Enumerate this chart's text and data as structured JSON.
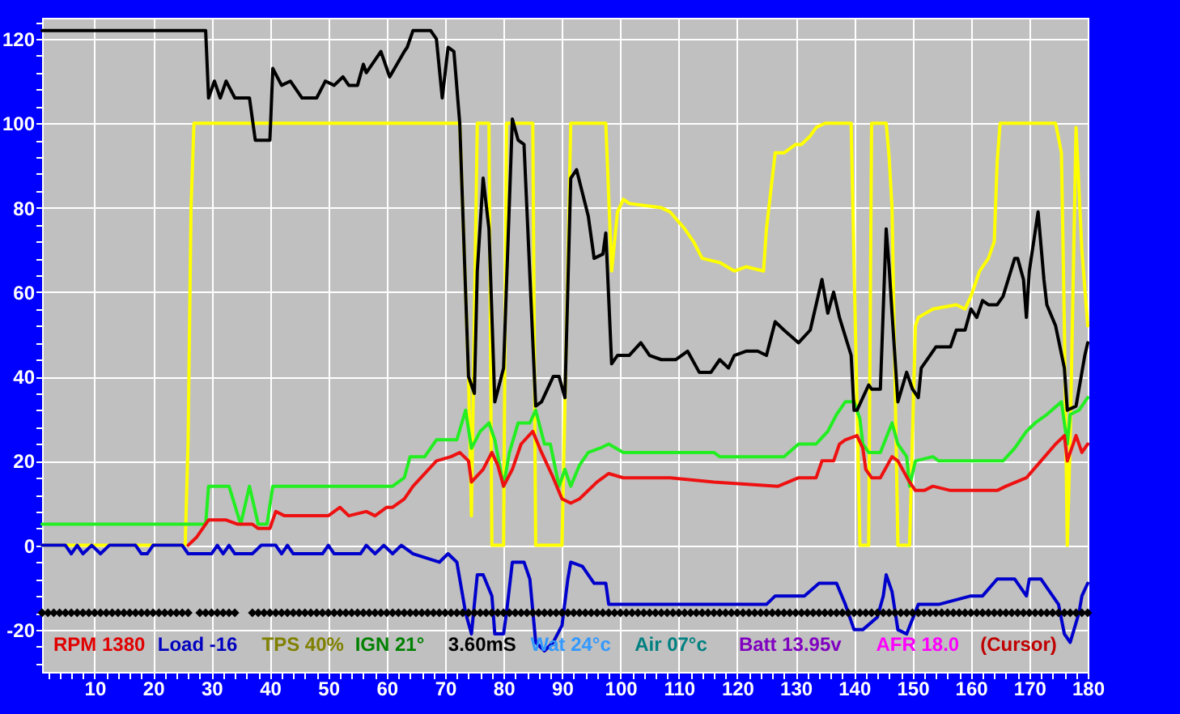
{
  "chart_data": {
    "type": "line",
    "xlim": [
      1,
      180
    ],
    "ylim": [
      -30,
      125
    ],
    "grid": true,
    "xticks": [
      {
        "value": 2,
        "label": null
      },
      {
        "value": 4,
        "label": null
      },
      {
        "value": 6,
        "label": null
      },
      {
        "value": 8,
        "label": null
      },
      10,
      {
        "value": 12,
        "label": null
      },
      {
        "value": 14,
        "label": null
      },
      {
        "value": 16,
        "label": null
      },
      {
        "value": 18,
        "label": null
      },
      20,
      {
        "value": 22,
        "label": null
      },
      {
        "value": 24,
        "label": null
      },
      {
        "value": 26,
        "label": null
      },
      {
        "value": 28,
        "label": null
      },
      30,
      {
        "value": 32,
        "label": null
      },
      {
        "value": 34,
        "label": null
      },
      {
        "value": 36,
        "label": null
      },
      {
        "value": 38,
        "label": null
      },
      40,
      {
        "value": 42,
        "label": null
      },
      {
        "value": 44,
        "label": null
      },
      {
        "value": 46,
        "label": null
      },
      {
        "value": 48,
        "label": null
      },
      50,
      {
        "value": 52,
        "label": null
      },
      {
        "value": 54,
        "label": null
      },
      {
        "value": 56,
        "label": null
      },
      {
        "value": 58,
        "label": null
      },
      60,
      {
        "value": 62,
        "label": null
      },
      {
        "value": 64,
        "label": null
      },
      {
        "value": 66,
        "label": null
      },
      {
        "value": 68,
        "label": null
      },
      70,
      {
        "value": 72,
        "label": null
      },
      {
        "value": 74,
        "label": null
      },
      {
        "value": 76,
        "label": null
      },
      {
        "value": 78,
        "label": null
      },
      80,
      {
        "value": 82,
        "label": null
      },
      {
        "value": 84,
        "label": null
      },
      {
        "value": 86,
        "label": null
      },
      {
        "value": 88,
        "label": null
      },
      90,
      {
        "value": 92,
        "label": null
      },
      {
        "value": 94,
        "label": null
      },
      {
        "value": 96,
        "label": null
      },
      {
        "value": 98,
        "label": null
      },
      100,
      {
        "value": 102,
        "label": null
      },
      {
        "value": 104,
        "label": null
      },
      {
        "value": 106,
        "label": null
      },
      {
        "value": 108,
        "label": null
      },
      110,
      {
        "value": 112,
        "label": null
      },
      {
        "value": 114,
        "label": null
      },
      {
        "value": 116,
        "label": null
      },
      {
        "value": 118,
        "label": null
      },
      120,
      {
        "value": 122,
        "label": null
      },
      {
        "value": 124,
        "label": null
      },
      {
        "value": 126,
        "label": null
      },
      {
        "value": 128,
        "label": null
      },
      130,
      {
        "value": 132,
        "label": null
      },
      {
        "value": 134,
        "label": null
      },
      {
        "value": 136,
        "label": null
      },
      {
        "value": 138,
        "label": null
      },
      140,
      {
        "value": 142,
        "label": null
      },
      {
        "value": 144,
        "label": null
      },
      {
        "value": 146,
        "label": null
      },
      {
        "value": 148,
        "label": null
      },
      150,
      {
        "value": 152,
        "label": null
      },
      {
        "value": 154,
        "label": null
      },
      {
        "value": 156,
        "label": null
      },
      {
        "value": 158,
        "label": null
      },
      160,
      {
        "value": 162,
        "label": null
      },
      {
        "value": 164,
        "label": null
      },
      {
        "value": 166,
        "label": null
      },
      {
        "value": 168,
        "label": null
      },
      170,
      {
        "value": 172,
        "label": null
      },
      {
        "value": 174,
        "label": null
      },
      {
        "value": 176,
        "label": null
      },
      {
        "value": 178,
        "label": null
      },
      180
    ],
    "yticks": [
      {
        "value": -28,
        "label": null
      },
      {
        "value": -24,
        "label": null
      },
      -20,
      {
        "value": -16,
        "label": null
      },
      {
        "value": -12,
        "label": null
      },
      {
        "value": -8,
        "label": null
      },
      {
        "value": -4,
        "label": null
      },
      0,
      {
        "value": 4,
        "label": null
      },
      {
        "value": 8,
        "label": null
      },
      {
        "value": 12,
        "label": null
      },
      {
        "value": 16,
        "label": null
      },
      20,
      {
        "value": 24,
        "label": null
      },
      {
        "value": 28,
        "label": null
      },
      {
        "value": 32,
        "label": null
      },
      {
        "value": 36,
        "label": null
      },
      40,
      {
        "value": 44,
        "label": null
      },
      {
        "value": 48,
        "label": null
      },
      {
        "value": 52,
        "label": null
      },
      {
        "value": 56,
        "label": null
      },
      60,
      {
        "value": 64,
        "label": null
      },
      {
        "value": 68,
        "label": null
      },
      {
        "value": 72,
        "label": null
      },
      {
        "value": 76,
        "label": null
      },
      80,
      {
        "value": 84,
        "label": null
      },
      {
        "value": 88,
        "label": null
      },
      {
        "value": 92,
        "label": null
      },
      {
        "value": 96,
        "label": null
      },
      100,
      {
        "value": 104,
        "label": null
      },
      {
        "value": 108,
        "label": null
      },
      {
        "value": 112,
        "label": null
      },
      {
        "value": 116,
        "label": null
      },
      120,
      {
        "value": 124,
        "label": null
      }
    ],
    "annotations": [
      "RPM 1380",
      "Load -16",
      "TPS 40%",
      "IGN 21°",
      "3.60mS",
      "Wat 24°c",
      "Air 07°c",
      "Batt 13.95v",
      "AFR 18.0",
      "(Cursor)"
    ],
    "series": [
      {
        "color": "#ffff00",
        "x": [
          1,
          25.5,
          26,
          26.5,
          27,
          72.5,
          74,
          74.5,
          75.5,
          77.5,
          78,
          80,
          80.5,
          85,
          85.5,
          90,
          91.5,
          97.5,
          98.5,
          99.5,
          100.5,
          101.5,
          107,
          108.5,
          111,
          112.5,
          114,
          117,
          119.5,
          121.5,
          124.5,
          125,
          126.5,
          128,
          130,
          131,
          132.5,
          133.5,
          135,
          139.5,
          141,
          142.5,
          143,
          145.5,
          146,
          146.5,
          147.5,
          149.5,
          150.5,
          151,
          153.5,
          157.5,
          159,
          160,
          161.5,
          163,
          164,
          164.5,
          165,
          174.5,
          175.5,
          176,
          176.5,
          177,
          178,
          179,
          180
        ],
        "values": [
          0,
          0,
          25,
          80,
          100,
          100,
          40,
          7,
          100,
          100,
          0,
          0,
          100,
          100,
          0,
          0,
          100,
          100,
          65,
          79,
          82,
          81,
          80,
          79,
          75,
          72,
          68,
          67,
          65,
          66,
          65,
          75,
          93,
          93,
          95,
          95,
          97,
          99,
          100,
          100,
          0,
          0,
          100,
          100,
          92,
          80,
          0,
          0,
          52,
          54,
          56,
          57,
          56,
          59,
          65,
          68,
          72,
          91,
          100,
          100,
          93,
          52,
          0,
          25,
          99,
          70,
          52
        ]
      },
      {
        "color": "#22ee22",
        "x": [
          1,
          29,
          29.5,
          33,
          35,
          36.5,
          38,
          39.5,
          40.5,
          61,
          63,
          64,
          66.5,
          68.5,
          72,
          73.5,
          74.5,
          76,
          77.5,
          78.5,
          80,
          81,
          82.5,
          84.5,
          85.5,
          87,
          88,
          89.5,
          90.5,
          91.5,
          93,
          94.5,
          96.5,
          98,
          100.5,
          116,
          117,
          128,
          130.5,
          133.5,
          135.5,
          137,
          138.5,
          140,
          141,
          141.5,
          142.5,
          144.5,
          146.5,
          147.5,
          149,
          149.5,
          150.5,
          153.5,
          154.5,
          165.5,
          167.5,
          169.5,
          171,
          173,
          175.5,
          176.5,
          177,
          178.5,
          180
        ],
        "values": [
          5,
          5,
          14,
          14,
          5,
          14,
          5,
          5,
          14,
          14,
          16,
          21,
          21,
          25,
          25,
          32,
          23,
          27,
          29,
          25,
          14,
          22,
          29,
          29,
          32,
          24,
          24,
          14,
          18,
          14,
          19,
          22,
          23,
          24,
          22,
          22,
          21,
          21,
          24,
          24,
          27,
          31,
          34,
          34,
          30,
          24,
          22,
          22,
          29,
          24,
          21,
          14,
          20,
          21,
          20,
          20,
          23,
          27,
          29,
          31,
          34,
          24,
          31,
          32,
          35
        ]
      },
      {
        "color": "#ee1111",
        "x": [
          26,
          27.5,
          29.5,
          32.5,
          34.5,
          37,
          38,
          40,
          41,
          42.5,
          45.5,
          48,
          50,
          52,
          53.5,
          56.5,
          58,
          60,
          61,
          63,
          64.5,
          68.5,
          71,
          72.5,
          74,
          74.5,
          76.5,
          78,
          79,
          80,
          81.5,
          83,
          85,
          86.5,
          88.5,
          90,
          91.5,
          93,
          96,
          98,
          100.5,
          108.5,
          116,
          127,
          130.5,
          133.5,
          134.5,
          136.5,
          137.5,
          138.5,
          140.5,
          141.5,
          142,
          143,
          144.5,
          146.5,
          147.5,
          149.5,
          150.5,
          152,
          153.5,
          156.5,
          164.5,
          166,
          169.5,
          172,
          174.5,
          176,
          176.5,
          178,
          179,
          180
        ],
        "values": [
          0,
          2,
          6,
          6,
          5,
          5,
          4,
          4,
          8,
          7,
          7,
          7,
          7,
          9,
          7,
          8,
          7,
          9,
          9,
          11,
          14,
          20,
          21,
          22,
          20,
          15,
          18,
          22,
          19,
          14,
          18,
          24,
          27,
          22,
          16,
          11,
          10,
          11,
          15,
          17,
          16,
          16,
          15,
          14,
          16,
          16,
          20,
          20,
          24,
          25,
          26,
          23,
          18,
          16,
          16,
          21,
          20,
          15,
          13,
          13,
          14,
          13,
          13,
          14,
          16,
          20,
          24,
          26,
          20,
          26,
          22,
          24
        ]
      },
      {
        "color": "#0000cc",
        "x": [
          1,
          5,
          6,
          7,
          8,
          9.5,
          11,
          12.5,
          17,
          18,
          19,
          20,
          25,
          26,
          30,
          31,
          32,
          33,
          34,
          37,
          38.5,
          41,
          42,
          43,
          44,
          49,
          50,
          51,
          55.5,
          56.5,
          58,
          59.5,
          61,
          62.5,
          64.5,
          69,
          70.5,
          72,
          73.5,
          74.5,
          75.5,
          76.5,
          78,
          78.5,
          80,
          80.5,
          81.5,
          83.5,
          84.5,
          85.5,
          87,
          88.5,
          90,
          91,
          91.5,
          93.5,
          95.5,
          97.5,
          98,
          99,
          101.5,
          104,
          107,
          116,
          125,
          126.5,
          131.5,
          134,
          137,
          138.5,
          140,
          141.5,
          144,
          145,
          145.5,
          146.5,
          147.5,
          149,
          151,
          154.5,
          160,
          162,
          164.5,
          167.5,
          169.5,
          170,
          172,
          175,
          176,
          177,
          178.5,
          179,
          180
        ],
        "values": [
          0,
          0,
          -2,
          0,
          -2,
          0,
          -2,
          0,
          0,
          -2,
          -2,
          0,
          0,
          -2,
          -2,
          0,
          -2,
          0,
          -2,
          -2,
          0,
          0,
          -2,
          0,
          -2,
          -2,
          0,
          -2,
          -2,
          0,
          -2,
          0,
          -2,
          0,
          -2,
          -4,
          -2,
          -4,
          -16,
          -21,
          -7,
          -7,
          -12,
          -21,
          -21,
          -16,
          -4,
          -4,
          -8,
          -23,
          -25,
          -23,
          -19,
          -8,
          -4,
          -5,
          -9,
          -9,
          -14,
          -14,
          -14,
          -14,
          -14,
          -14,
          -14,
          -12,
          -12,
          -9,
          -9,
          -14,
          -20,
          -20,
          -17,
          -12,
          -7,
          -11,
          -20,
          -21,
          -14,
          -14,
          -12,
          -12,
          -8,
          -8,
          -12,
          -8,
          -8,
          -14,
          -21,
          -23,
          -16,
          -12,
          -9
        ]
      },
      {
        "color": "#000000",
        "x": [
          1,
          29,
          29.5,
          30.5,
          31.5,
          32.5,
          34,
          36.5,
          37.5,
          40,
          40.5,
          42,
          43.5,
          45.5,
          48,
          49.5,
          51,
          52.5,
          53.5,
          55,
          56,
          56.5,
          59,
          60.5,
          63,
          63.5,
          64.5,
          67.5,
          68.5,
          69.5,
          70.5,
          71.5,
          72.5,
          74,
          75,
          75.5,
          76.5,
          77.5,
          78.5,
          80,
          81.5,
          82.5,
          83.5,
          85.5,
          86.5,
          88.5,
          89.5,
          90.5,
          91.5,
          92.5,
          94.5,
          95.5,
          97,
          97.5,
          98.5,
          99.5,
          101.5,
          103.5,
          105,
          107,
          109.5,
          111.5,
          113.5,
          115.5,
          117,
          118.5,
          119.5,
          121.5,
          123.5,
          125,
          126.5,
          128,
          130.5,
          132.5,
          134.5,
          135.5,
          136.5,
          137.5,
          139.5,
          140,
          140.5,
          142.5,
          143,
          144.5,
          145.5,
          146,
          146.5,
          147.5,
          149,
          150,
          151,
          151.5,
          153,
          154,
          156.5,
          157.5,
          159,
          160,
          161,
          162,
          163,
          164.5,
          165.5,
          167.5,
          168,
          169,
          169.5,
          170,
          171.5,
          172.5,
          173,
          174.5,
          176,
          176.5,
          178,
          178.5,
          179.5,
          180
        ],
        "values": [
          122,
          122,
          106,
          110,
          106,
          110,
          106,
          106,
          96,
          96,
          113,
          109,
          110,
          106,
          106,
          110,
          109,
          111,
          109,
          109,
          114,
          112,
          117,
          111,
          117,
          118,
          122,
          122,
          120,
          106,
          118,
          117,
          100,
          40,
          36,
          65,
          87,
          75,
          34,
          42,
          101,
          96,
          95,
          33,
          34,
          40,
          40,
          35,
          87,
          89,
          78,
          68,
          69,
          74,
          43,
          45,
          45,
          48,
          45,
          44,
          44,
          46,
          41,
          41,
          44,
          42,
          45,
          46,
          46,
          45,
          53,
          51,
          48,
          51,
          63,
          55,
          60,
          54,
          45,
          32,
          32,
          38,
          37,
          37,
          75,
          66,
          55,
          34,
          41,
          37,
          35,
          42,
          45,
          47,
          47,
          51,
          51,
          56,
          54,
          58,
          57,
          57,
          59,
          68,
          68,
          63,
          54,
          65,
          79,
          63,
          57,
          52,
          42,
          32,
          33,
          37,
          45,
          48
        ]
      },
      {
        "type": "scatter",
        "marker": "diamond",
        "color": "#000000",
        "x": [
          1,
          2,
          3,
          4,
          5,
          6,
          7,
          8,
          9,
          10,
          11,
          12,
          13,
          14,
          15,
          16,
          17,
          18,
          19,
          20,
          21,
          22,
          23,
          24,
          25,
          26,
          28,
          29,
          30,
          31,
          32,
          33,
          34,
          37,
          38,
          39,
          40,
          41,
          42,
          43,
          44,
          45,
          46,
          47,
          48,
          49,
          50,
          51,
          52,
          53,
          54,
          55,
          56,
          57,
          58,
          59,
          60,
          61,
          62,
          63,
          64,
          65,
          66,
          67,
          68,
          69,
          70,
          71,
          72,
          73,
          74,
          75,
          76,
          77,
          78,
          79,
          80,
          81,
          82,
          83,
          84,
          85,
          86,
          87,
          88,
          89,
          90,
          91,
          92,
          93,
          94,
          95,
          96,
          97,
          98,
          99,
          100,
          101,
          102,
          103,
          104,
          105,
          106,
          107,
          108,
          109,
          110,
          111,
          112,
          113,
          114,
          115,
          116,
          117,
          118,
          119,
          120,
          121,
          122,
          123,
          124,
          125,
          126,
          127,
          128,
          129,
          130,
          131,
          132,
          133,
          134,
          135,
          136,
          137,
          138,
          139,
          140,
          141,
          142,
          143,
          144,
          145,
          146,
          147,
          148,
          149,
          150,
          151,
          152,
          153,
          154,
          155,
          156,
          157,
          158,
          159,
          160,
          161,
          162,
          163,
          164,
          165,
          166,
          167,
          168,
          169,
          170,
          171,
          172,
          173,
          174,
          175,
          176,
          177,
          178,
          179,
          180
        ],
        "values": [
          -16,
          -16,
          -16,
          -16,
          -16,
          -16,
          -16,
          -16,
          -16,
          -16,
          -16,
          -16,
          -16,
          -16,
          -16,
          -16,
          -16,
          -16,
          -16,
          -16,
          -16,
          -16,
          -16,
          -16,
          -16,
          -16,
          -16,
          -16,
          -16,
          -16,
          -16,
          -16,
          -16,
          -16,
          -16,
          -16,
          -16,
          -16,
          -16,
          -16,
          -16,
          -16,
          -16,
          -16,
          -16,
          -16,
          -16,
          -16,
          -16,
          -16,
          -16,
          -16,
          -16,
          -16,
          -16,
          -16,
          -16,
          -16,
          -16,
          -16,
          -16,
          -16,
          -16,
          -16,
          -16,
          -16,
          -16,
          -16,
          -16,
          -16,
          -16,
          -16,
          -16,
          -16,
          -16,
          -16,
          -16,
          -16,
          -16,
          -16,
          -16,
          -16,
          -16,
          -16,
          -16,
          -16,
          -16,
          -16,
          -16,
          -16,
          -16,
          -16,
          -16,
          -16,
          -16,
          -16,
          -16,
          -16,
          -16,
          -16,
          -16,
          -16,
          -16,
          -16,
          -16,
          -16,
          -16,
          -16,
          -16,
          -16,
          -16,
          -16,
          -16,
          -16,
          -16,
          -16,
          -16,
          -16,
          -16,
          -16,
          -16,
          -16,
          -16,
          -16,
          -16,
          -16,
          -16,
          -16,
          -16,
          -16,
          -16,
          -16,
          -16,
          -16,
          -16,
          -16,
          -16,
          -16,
          -16,
          -16,
          -16,
          -16,
          -16,
          -16,
          -16,
          -16,
          -16,
          -16,
          -16,
          -16,
          -16,
          -16,
          -16,
          -16,
          -16,
          -16,
          -16,
          -16,
          -16,
          -16,
          -16,
          -16,
          -16,
          -16,
          -16,
          -16,
          -16,
          -16,
          -16,
          -16,
          -16,
          -16,
          -16,
          -16,
          -16,
          -16,
          -16
        ]
      }
    ]
  }
}
